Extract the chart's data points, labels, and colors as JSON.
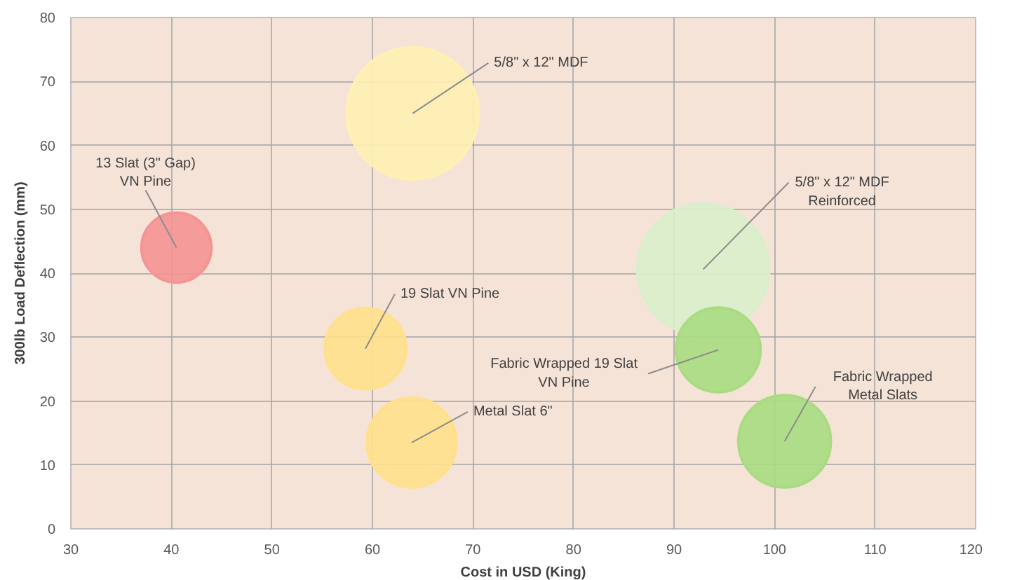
{
  "chart_data": {
    "type": "bubble",
    "xlabel": "Cost in USD (King)",
    "ylabel": "300lb Load Deflection (mm)",
    "xlim": [
      30,
      120
    ],
    "xticks": [
      30,
      40,
      50,
      60,
      70,
      80,
      90,
      100,
      110,
      120
    ],
    "ylim": [
      0,
      80
    ],
    "yticks": [
      0,
      10,
      20,
      30,
      40,
      50,
      60,
      70,
      80
    ],
    "grid": true,
    "x": [
      64.0,
      40.5,
      59.3,
      63.9,
      92.9,
      94.4,
      101.0
    ],
    "values": [
      65,
      44,
      28.2,
      13.5,
      40.6,
      28,
      13.7
    ],
    "sizes": [
      1,
      0.28,
      0.38,
      0.46,
      1,
      0.41,
      0.49
    ],
    "colors": [
      "#fff0b4",
      "#f59494",
      "#ffe08c",
      "#ffe08c",
      "#daeecb",
      "#a9dc82",
      "#a9dc82"
    ],
    "annotations": [
      {
        "text": "5/8\" x 12\" MDF",
        "x": 64.0,
        "y": 65
      },
      {
        "text": "13 Slat (3\" Gap)\nVN Pine",
        "x": 40.5,
        "y": 44
      },
      {
        "text": "19 Slat VN Pine",
        "x": 59.3,
        "y": 28.2
      },
      {
        "text": "Metal Slat 6\"",
        "x": 63.9,
        "y": 13.5
      },
      {
        "text": "5/8\" x 12\" MDF\nReinforced",
        "x": 92.9,
        "y": 40.6
      },
      {
        "text": "Fabric Wrapped 19 Slat\nVN Pine",
        "x": 94.4,
        "y": 28
      },
      {
        "text": "Fabric Wrapped\nMetal Slats",
        "x": 101.0,
        "y": 13.7
      }
    ]
  }
}
